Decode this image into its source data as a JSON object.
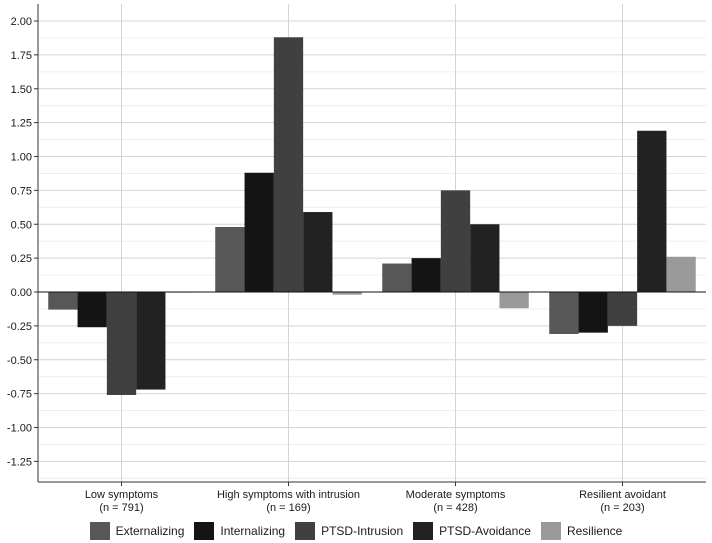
{
  "chart_data": {
    "type": "bar",
    "title": "",
    "xlabel": "",
    "ylabel": "",
    "ylim": [
      -1.4,
      2.1
    ],
    "yticks": [
      "2.00",
      "1.75",
      "1.50",
      "1.25",
      "1.00",
      "0.75",
      "0.50",
      "0.25",
      "0.00",
      "-0.25",
      "-0.50",
      "-0.75",
      "-1.00",
      "-1.25"
    ],
    "tick_values": [
      2.0,
      1.75,
      1.5,
      1.25,
      1.0,
      0.75,
      0.5,
      0.25,
      0.0,
      -0.25,
      -0.5,
      -0.75,
      -1.0,
      -1.25
    ],
    "categories": [
      {
        "line1": "Low symptoms",
        "line2": "(n = 791)"
      },
      {
        "line1": "High symptoms with intrusion",
        "line2": "(n = 169)"
      },
      {
        "line1": "Moderate symptoms",
        "line2": "(n = 428)"
      },
      {
        "line1": "Resilient avoidant",
        "line2": "(n = 203)"
      }
    ],
    "series": [
      {
        "name": "Externalizing",
        "color": "#575757",
        "values": [
          -0.13,
          0.48,
          0.21,
          -0.31
        ]
      },
      {
        "name": "Internalizing",
        "color": "#141414",
        "values": [
          -0.26,
          0.88,
          0.25,
          -0.3
        ]
      },
      {
        "name": "PTSD-Intrusion",
        "color": "#404040",
        "values": [
          -0.76,
          1.88,
          0.75,
          -0.25
        ]
      },
      {
        "name": "PTSD-Avoidance",
        "color": "#222222",
        "values": [
          -0.72,
          0.59,
          0.5,
          1.19
        ]
      },
      {
        "name": "Resilience",
        "color": "#9a9a9a",
        "values": [
          0.0,
          -0.02,
          -0.12,
          0.26
        ]
      }
    ],
    "legend_position": "bottom",
    "grid": true
  }
}
